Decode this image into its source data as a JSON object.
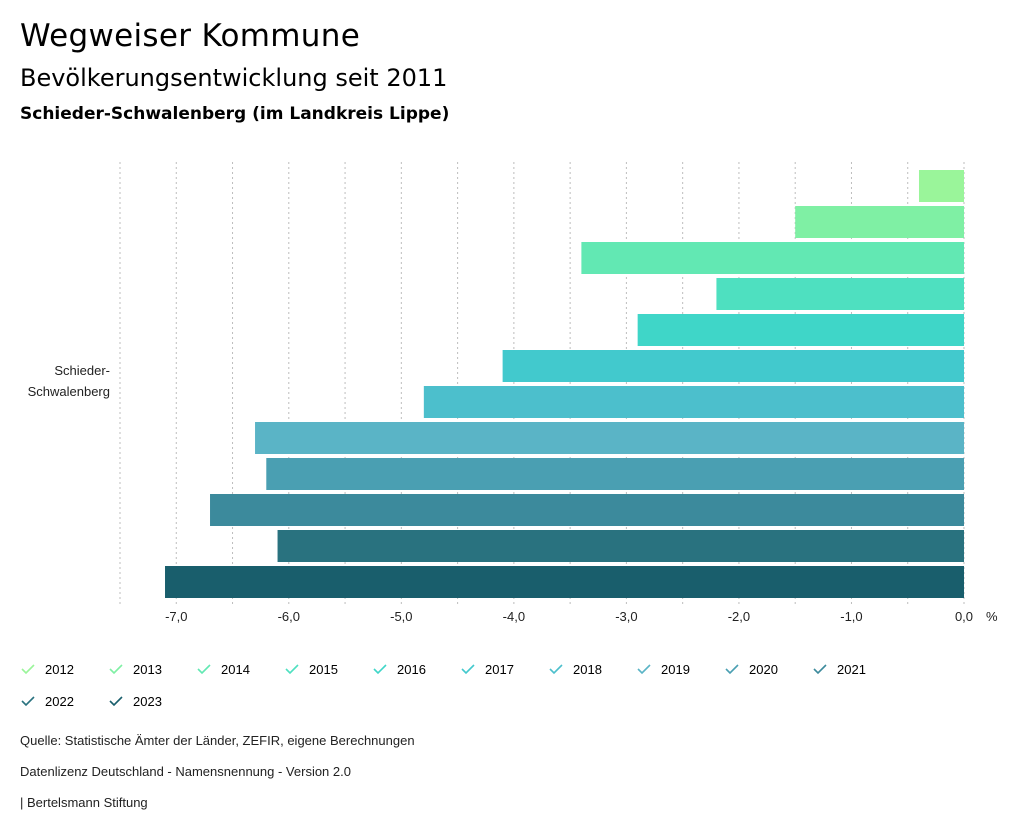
{
  "header": {
    "title": "Wegweiser Kommune",
    "subtitle": "Bevölkerungsentwicklung seit 2011",
    "region": "Schieder-Schwalenberg (im Landkreis Lippe)"
  },
  "chart_data": {
    "type": "bar",
    "orientation": "horizontal",
    "category_label_lines": [
      "Schieder-",
      "Schwalenberg"
    ],
    "unit": "%",
    "xlim": [
      -7.5,
      0
    ],
    "xticks": [
      -7.0,
      -6.0,
      -5.0,
      -4.0,
      -3.0,
      -2.0,
      -1.0,
      0.0
    ],
    "xtick_labels": [
      "-7,0",
      "-6,0",
      "-5,0",
      "-4,0",
      "-3,0",
      "-2,0",
      "-1,0",
      "0,0"
    ],
    "grid": true,
    "series": [
      {
        "name": "2012",
        "value": -0.4,
        "color": "#9af59a"
      },
      {
        "name": "2013",
        "value": -1.5,
        "color": "#7ff0a4"
      },
      {
        "name": "2014",
        "value": -3.4,
        "color": "#62e8b3"
      },
      {
        "name": "2015",
        "value": -2.2,
        "color": "#4ee0c0"
      },
      {
        "name": "2016",
        "value": -2.9,
        "color": "#3fd6c8"
      },
      {
        "name": "2017",
        "value": -4.1,
        "color": "#42c9cd"
      },
      {
        "name": "2018",
        "value": -4.8,
        "color": "#4cbfcc"
      },
      {
        "name": "2019",
        "value": -6.3,
        "color": "#5ab4c6"
      },
      {
        "name": "2020",
        "value": -6.2,
        "color": "#4a9fb2"
      },
      {
        "name": "2021",
        "value": -6.7,
        "color": "#3c8a9c"
      },
      {
        "name": "2022",
        "value": -6.1,
        "color": "#29727f"
      },
      {
        "name": "2023",
        "value": -7.1,
        "color": "#195e6c"
      }
    ]
  },
  "footer": {
    "source": "Quelle: Statistische Ämter der Länder, ZEFIR, eigene Berechnungen",
    "license": "Datenlizenz Deutschland - Namensnennung - Version 2.0",
    "publisher": "| Bertelsmann Stiftung"
  }
}
